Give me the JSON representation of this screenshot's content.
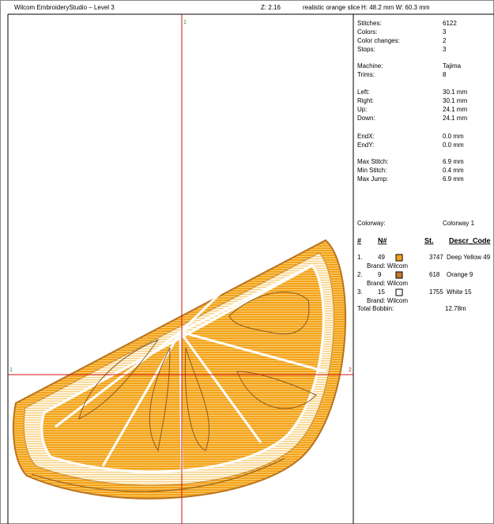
{
  "header": {
    "app_title": "Wilcom EmbroideryStudio – Level 3",
    "zoom": "Z: 2.16",
    "design_name": "realistic orange slice",
    "dimensions": "H: 48.2 mm  W: 60.3 mm"
  },
  "crosshair": {
    "top_label": "1",
    "left_label": "1",
    "right_label": "2"
  },
  "stats": [
    [
      {
        "label": "Stitches:",
        "value": "6122"
      },
      {
        "label": "Colors:",
        "value": "3"
      },
      {
        "label": "Color changes:",
        "value": "2"
      },
      {
        "label": "Stops:",
        "value": "3"
      }
    ],
    [
      {
        "label": "Machine:",
        "value": "Tajima"
      },
      {
        "label": "Trims:",
        "value": "8"
      }
    ],
    [
      {
        "label": "Left:",
        "value": "30.1 mm"
      },
      {
        "label": "Right:",
        "value": "30.1 mm"
      },
      {
        "label": "Up:",
        "value": "24.1 mm"
      },
      {
        "label": "Down:",
        "value": "24.1 mm"
      }
    ],
    [
      {
        "label": "EndX:",
        "value": "0.0 mm"
      },
      {
        "label": "EndY:",
        "value": "0.0 mm"
      }
    ],
    [
      {
        "label": "Max Stitch:",
        "value": "6.9 mm"
      },
      {
        "label": "Min Stitch:",
        "value": "0.4 mm"
      },
      {
        "label": "Max Jump:",
        "value": "6.9 mm"
      }
    ]
  ],
  "colorway": {
    "label": "Colorway:",
    "value": "Colorway 1"
  },
  "color_table": {
    "headers": [
      "#",
      "N#",
      "St.",
      "Descr_Code"
    ],
    "rows": [
      {
        "index": "1.",
        "number": "49",
        "stitches": "3747",
        "description": "Deep Yellow 49",
        "brand": "Brand: Wilcom",
        "swatch": "#f2a41c"
      },
      {
        "index": "2.",
        "number": "9",
        "stitches": "618",
        "description": "Orange 9",
        "brand": "Brand: Wilcom",
        "swatch": "#c7792c"
      },
      {
        "index": "3.",
        "number": "15",
        "stitches": "1755",
        "description": "White 15",
        "brand": "Brand: Wilcom",
        "swatch": "#ffffff"
      }
    ],
    "total_label": "Total Bobbin:",
    "total_value": "12.78m"
  }
}
